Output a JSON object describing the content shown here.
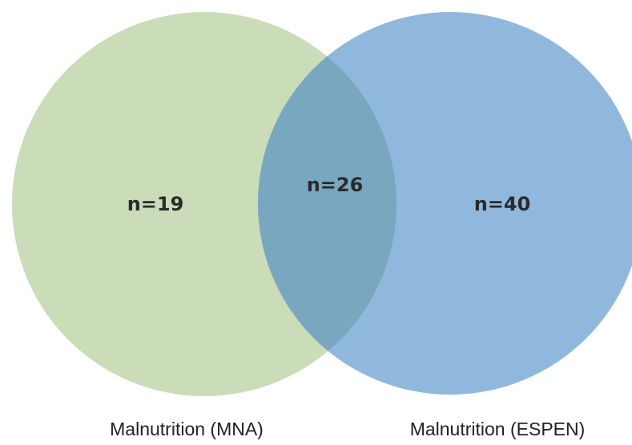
{
  "sets": [
    {
      "label": "Malnutrition (MNA)"
    },
    {
      "label": "Malnutrition (ESPEN)"
    }
  ],
  "regions": {
    "left_only": "n=19",
    "overlap": "n=26",
    "right_only": "n=40"
  }
}
